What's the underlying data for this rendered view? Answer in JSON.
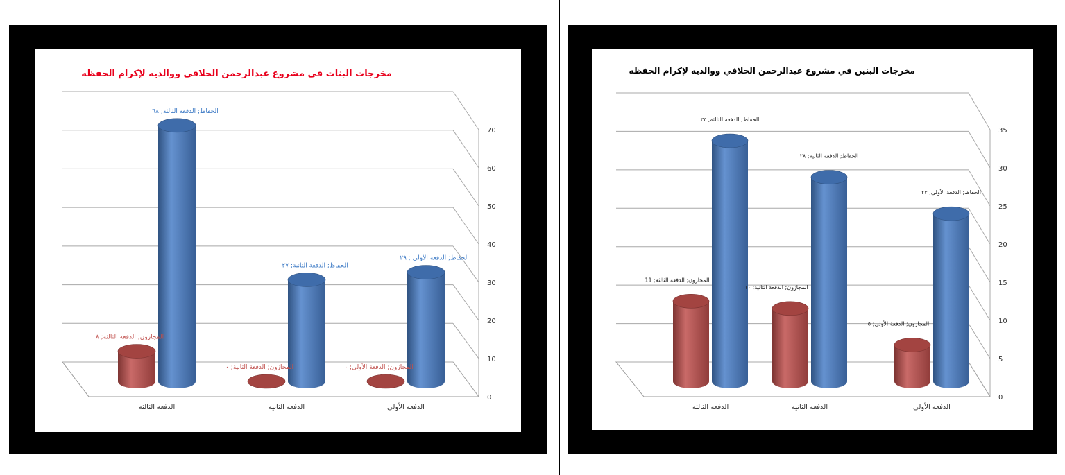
{
  "colors": {
    "frame": "#000000",
    "mat": "#ffffff",
    "series_memorizers": "#4a7fc8",
    "series_mujazoon": "#c0504d",
    "title_left": "#e8001c",
    "title_right": "#000000",
    "label_left_blue": "#3a78c4",
    "label_left_red": "#c0504d",
    "label_right": "#222222"
  },
  "chart_data": [
    {
      "type": "bar",
      "subtype": "3d-cylinder",
      "title": "مخرجات البنات في مشروع عبدالرحمن الحلافي ووالديه لإكرام الحفظه",
      "categories": [
        "الدفعة الثالثة",
        "الدفعة الثانية",
        "الدفعة الأولى"
      ],
      "ylim": [
        0,
        70
      ],
      "yticks": [
        "0",
        "10",
        "20",
        "30",
        "40",
        "50",
        "60",
        "70"
      ],
      "grid": true,
      "series": [
        {
          "key": "mujazoon",
          "values": [
            8,
            0,
            0
          ],
          "labels": [
            "المجازون; الدفعة الثالثة; ٨",
            "المجازون; الدفعة الثانية; ٠",
            "المجازون; الدفعة الأولى; ٠"
          ]
        },
        {
          "key": "huffaz",
          "values": [
            68,
            27,
            29
          ],
          "labels": [
            "الحفاظ; الدفعة الثالثة; ٦٨",
            "الحفاظ; الدفعة الثانية; ٢٧",
            "الحفاظ; الدفعة الأولى ; ٢٩"
          ]
        }
      ]
    },
    {
      "type": "bar",
      "subtype": "3d-cylinder",
      "title": "مخرجات البنين في مشروع عبدالرحمن الحلافي ووالديه لإكرام الحفظه",
      "categories": [
        "الدفعة الثالثة",
        "الدفعة الثانية",
        "الدفعة الأولى"
      ],
      "ylim": [
        0,
        35
      ],
      "yticks": [
        "0",
        "5",
        "10",
        "15",
        "20",
        "25",
        "30",
        "35"
      ],
      "grid": true,
      "series": [
        {
          "key": "mujazoon",
          "values": [
            11,
            10,
            5
          ],
          "labels": [
            "المجازون; الدفعة الثالثة; 11",
            "المجازون; الدفعة الثانية; ١٠",
            "المجازون; الدفعة الأولى; ٥"
          ]
        },
        {
          "key": "huffaz",
          "values": [
            33,
            28,
            23
          ],
          "labels": [
            "الحفاظ; الدفعة الثالثة; ٣٣",
            "الحفاظ; الدفعة الثانية; ٢٨",
            "الحفاظ; الدفعة الأولى; ٢٣"
          ]
        }
      ]
    }
  ]
}
